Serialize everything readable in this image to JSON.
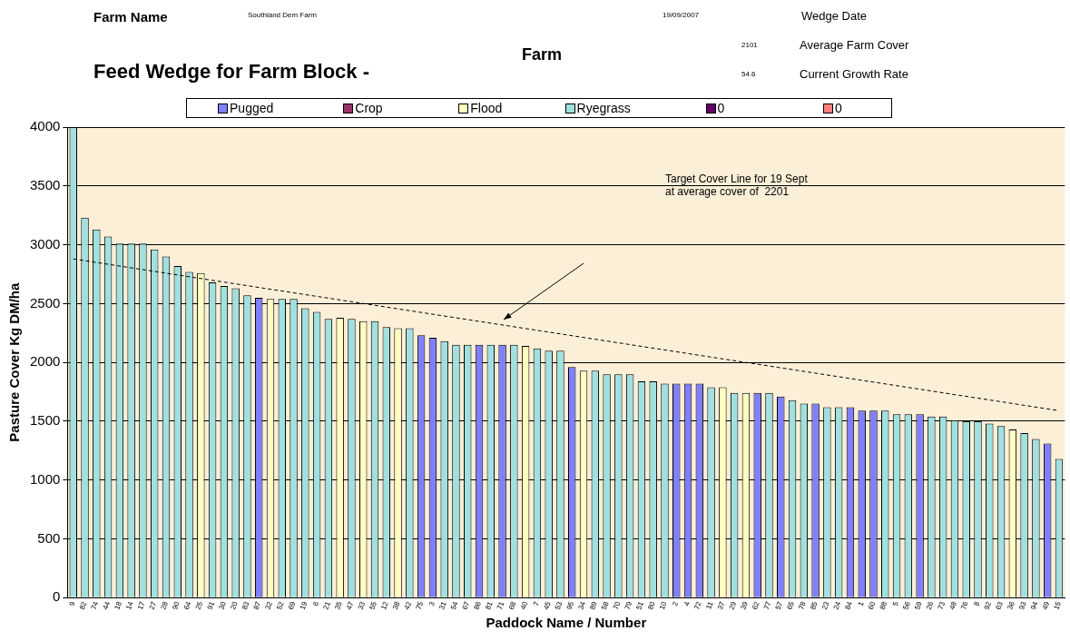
{
  "chart_data": {
    "type": "bar",
    "title": "Feed Wedge for Farm Block -",
    "annotations": [
      "Farm Name",
      "Southland Dem Farm",
      "19/09/2007",
      "Wedge Date",
      "2101",
      "Average Farm Cover",
      "Farm",
      "54.6",
      "Current Growth Rate",
      "Target Cover Line for 19 Sept\nat average cover of  2201"
    ],
    "xlabel": "Paddock Name / Number",
    "ylabel": "Pasture Cover Kg DM/ha",
    "categories": [
      "9",
      "82",
      "74",
      "44",
      "18",
      "14",
      "17",
      "27",
      "28",
      "90",
      "64",
      "25",
      "91",
      "30",
      "20",
      "83",
      "87",
      "32",
      "52",
      "69",
      "19",
      "6",
      "21",
      "35",
      "47",
      "33",
      "55",
      "12",
      "38",
      "42",
      "75",
      "3",
      "31",
      "54",
      "67",
      "86",
      "81",
      "71",
      "68",
      "40",
      "7",
      "45",
      "53",
      "95",
      "34",
      "89",
      "58",
      "70",
      "79",
      "51",
      "80",
      "10",
      "2",
      "4",
      "72",
      "11",
      "37",
      "29",
      "39",
      "62",
      "77",
      "57",
      "65",
      "78",
      "85",
      "23",
      "24",
      "84",
      "1",
      "60",
      "88",
      "5",
      "56",
      "59",
      "26",
      "73",
      "48",
      "76",
      "8",
      "92",
      "63",
      "36",
      "93",
      "94",
      "49",
      "15"
    ],
    "stacked": true,
    "series": [
      {
        "name": "Pugged",
        "color": "#7f7fff",
        "values": [
          null,
          null,
          null,
          null,
          null,
          null,
          null,
          null,
          null,
          null,
          null,
          null,
          null,
          null,
          null,
          null,
          2550,
          null,
          null,
          null,
          null,
          null,
          null,
          null,
          null,
          null,
          null,
          null,
          null,
          null,
          2230,
          2210,
          null,
          null,
          null,
          2150,
          null,
          2150,
          null,
          null,
          null,
          null,
          null,
          1960,
          null,
          null,
          null,
          null,
          null,
          null,
          null,
          null,
          1820,
          1820,
          1820,
          null,
          null,
          null,
          null,
          1740,
          null,
          1710,
          null,
          null,
          1650,
          null,
          null,
          1620,
          1590,
          1590,
          null,
          null,
          null,
          1560,
          null,
          null,
          null,
          null,
          null,
          null,
          null,
          null,
          null,
          null,
          1310,
          null
        ]
      },
      {
        "name": "Crop",
        "color": "#993366",
        "values": [
          null,
          null,
          null,
          null,
          null,
          null,
          null,
          null,
          null,
          null,
          null,
          null,
          null,
          null,
          null,
          null,
          null,
          null,
          null,
          null,
          null,
          null,
          null,
          null,
          null,
          null,
          null,
          null,
          null,
          null,
          null,
          null,
          null,
          null,
          null,
          null,
          null,
          null,
          null,
          null,
          null,
          null,
          null,
          null,
          null,
          null,
          null,
          null,
          null,
          null,
          null,
          null,
          null,
          null,
          null,
          null,
          null,
          null,
          null,
          null,
          null,
          null,
          null,
          null,
          null,
          null,
          null,
          null,
          null,
          null,
          null,
          null,
          null,
          null,
          null,
          null,
          null,
          null,
          null,
          null,
          null,
          null,
          null,
          null,
          null,
          null
        ]
      },
      {
        "name": "Flood",
        "color": "#ffffc0",
        "values": [
          null,
          null,
          null,
          null,
          null,
          null,
          null,
          null,
          null,
          null,
          null,
          2760,
          null,
          null,
          null,
          null,
          null,
          2540,
          null,
          null,
          null,
          null,
          null,
          2380,
          null,
          2350,
          null,
          null,
          2290,
          null,
          null,
          null,
          null,
          null,
          null,
          null,
          null,
          null,
          null,
          2140,
          null,
          null,
          null,
          null,
          1930,
          null,
          null,
          null,
          null,
          null,
          null,
          null,
          null,
          null,
          null,
          null,
          1790,
          null,
          1740,
          null,
          null,
          null,
          null,
          null,
          null,
          null,
          null,
          null,
          null,
          null,
          null,
          null,
          null,
          null,
          null,
          null,
          null,
          null,
          null,
          null,
          null,
          1430,
          null,
          null,
          null,
          null
        ]
      },
      {
        "name": "Ryegrass",
        "color": "#a0e0e0",
        "values": [
          4000,
          3230,
          3130,
          3070,
          3010,
          3010,
          3010,
          2960,
          2900,
          2820,
          2770,
          null,
          2680,
          2650,
          2630,
          2570,
          null,
          null,
          2540,
          2540,
          2460,
          2430,
          2370,
          null,
          2370,
          null,
          2350,
          2300,
          null,
          2290,
          null,
          null,
          2180,
          2150,
          2150,
          null,
          2150,
          null,
          2150,
          null,
          2120,
          2100,
          2100,
          null,
          null,
          1930,
          1900,
          1900,
          1900,
          1840,
          1840,
          1820,
          null,
          null,
          null,
          1790,
          null,
          1740,
          null,
          null,
          1740,
          null,
          1680,
          1650,
          null,
          1620,
          1620,
          null,
          null,
          null,
          1590,
          1560,
          1560,
          null,
          1540,
          1540,
          1510,
          1500,
          1500,
          1480,
          1460,
          null,
          1400,
          1350,
          null,
          1180
        ]
      },
      {
        "name": "0",
        "color": "#660066",
        "values": [
          null,
          null,
          null,
          null,
          null,
          null,
          null,
          null,
          null,
          null,
          null,
          null,
          null,
          null,
          null,
          null,
          null,
          null,
          null,
          null,
          null,
          null,
          null,
          null,
          null,
          null,
          null,
          null,
          null,
          null,
          null,
          null,
          null,
          null,
          null,
          null,
          null,
          null,
          null,
          null,
          null,
          null,
          null,
          null,
          null,
          null,
          null,
          null,
          null,
          null,
          null,
          null,
          null,
          null,
          null,
          null,
          null,
          null,
          null,
          null,
          null,
          null,
          null,
          null,
          null,
          null,
          null,
          null,
          null,
          null,
          null,
          null,
          null,
          null,
          null,
          null,
          null,
          null,
          null,
          null,
          null,
          null,
          null,
          null,
          null,
          null
        ]
      },
      {
        "name": "0",
        "color": "#ff8080",
        "values": [
          null,
          null,
          null,
          null,
          null,
          null,
          null,
          null,
          null,
          null,
          null,
          null,
          null,
          null,
          null,
          null,
          null,
          null,
          null,
          null,
          null,
          null,
          null,
          null,
          null,
          null,
          null,
          null,
          null,
          null,
          null,
          null,
          null,
          null,
          null,
          null,
          null,
          null,
          null,
          null,
          null,
          null,
          null,
          null,
          null,
          null,
          null,
          null,
          null,
          null,
          null,
          null,
          null,
          null,
          null,
          null,
          null,
          null,
          null,
          null,
          null,
          null,
          null,
          null,
          null,
          null,
          null,
          null,
          null,
          null,
          null,
          null,
          null,
          null,
          null,
          null,
          null,
          null,
          null,
          null,
          null,
          null,
          null,
          null,
          null,
          null
        ]
      },
      {
        "type": "line",
        "x": [
          "9",
          "15"
        ],
        "values": [
          2880,
          1590
        ],
        "color": "#000000",
        "line_style": "dashed"
      }
    ],
    "ylim": [
      0,
      4000
    ],
    "yticks": [
      0,
      500,
      1000,
      1500,
      2000,
      2500,
      3000,
      3500,
      4000
    ],
    "grid": "y",
    "legend": "top"
  }
}
